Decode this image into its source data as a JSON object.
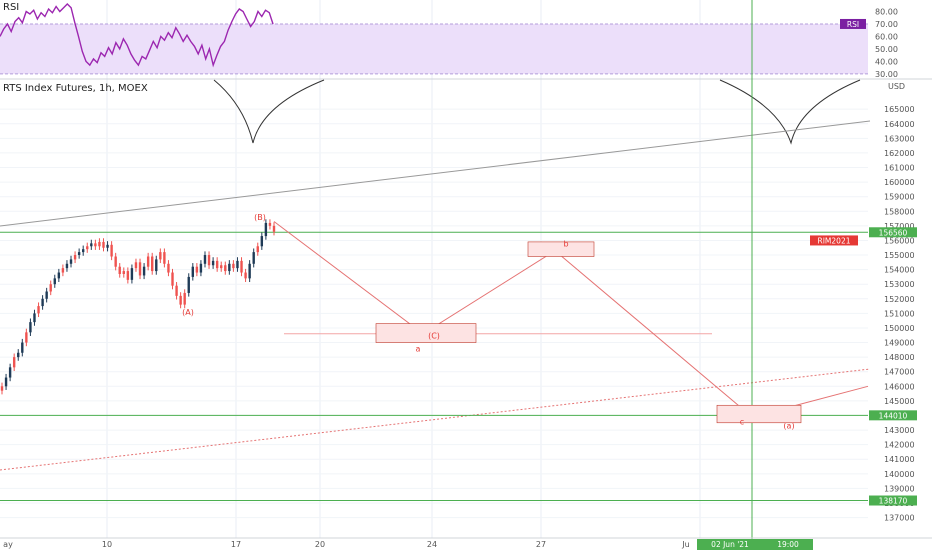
{
  "chart_data": [
    {
      "type": "line",
      "title": "RSI",
      "label": "RSI",
      "ylim": [
        27.5,
        86
      ],
      "yticks": [
        30.0,
        40.0,
        50.0,
        60.0,
        70.0,
        80.0
      ],
      "ytick_labels": [
        "30.00",
        "40.00",
        "50.00",
        "60.00",
        "70.00",
        "80.00"
      ],
      "zone": [
        30,
        70
      ],
      "series": [
        {
          "values": [
            60,
            66,
            70,
            64,
            72,
            75,
            71,
            80,
            78,
            81,
            74,
            79,
            76,
            82,
            79,
            84,
            80,
            83,
            86,
            83,
            71,
            60,
            48,
            40,
            37,
            42,
            39,
            47,
            44,
            51,
            46,
            55,
            50,
            58,
            53,
            46,
            41,
            37,
            44,
            42,
            49,
            56,
            51,
            60,
            57,
            63,
            59,
            67,
            62,
            56,
            61,
            56,
            52,
            46,
            53,
            42,
            50,
            37,
            45,
            52,
            56,
            65,
            72,
            78,
            82,
            80,
            74,
            68,
            72,
            80,
            76,
            81,
            79,
            70
          ]
        }
      ],
      "colors": {
        "line": "#9c27b0",
        "zone": "#ecdffa",
        "label_bg": "#7b1fa2"
      }
    },
    {
      "type": "line",
      "title": "RTS Index Futures, 1h, MOEX",
      "currency": "USD",
      "ylim": [
        135600,
        167000
      ],
      "yticks": [
        137000,
        138000,
        139000,
        140000,
        141000,
        142000,
        143000,
        144000,
        145000,
        146000,
        147000,
        148000,
        149000,
        150000,
        151000,
        152000,
        153000,
        154000,
        155000,
        156000,
        157000,
        158000,
        159000,
        160000,
        161000,
        162000,
        163000,
        164000,
        165000
      ],
      "ytick_labels": [
        "137000",
        "138000",
        "139000",
        "140000",
        "141000",
        "142000",
        "143000",
        "144000",
        "145000",
        "146000",
        "147000",
        "148000",
        "149000",
        "150000",
        "151000",
        "152000",
        "153000",
        "154000",
        "155000",
        "156000",
        "157000",
        "158000",
        "159000",
        "160000",
        "161000",
        "162000",
        "163000",
        "164000",
        "165000"
      ],
      "x_tick_labels": [
        "ay",
        "10",
        "17",
        "20",
        "24",
        "27",
        "Ju",
        "02 Jun '21",
        "19:00"
      ],
      "price_series": [
        146000,
        146600,
        147300,
        148000,
        148300,
        149000,
        149700,
        150400,
        151000,
        151500,
        152000,
        152500,
        153000,
        153400,
        153800,
        154100,
        154400,
        154700,
        155000,
        155200,
        155400,
        155600,
        155800,
        155600,
        155900,
        155500,
        155700,
        154900,
        154200,
        153700,
        153900,
        153300,
        154100,
        154500,
        153600,
        154200,
        154900,
        153900,
        154700,
        155200,
        154400,
        153800,
        152900,
        152200,
        151600,
        152400,
        153500,
        154200,
        153800,
        154400,
        155000,
        154300,
        154600,
        154100,
        154300,
        153900,
        154400,
        154100,
        154600,
        153800,
        153400,
        154400,
        155200,
        155600,
        156300,
        157200,
        157000,
        156600
      ],
      "levels": [
        {
          "label": "156560",
          "value": 156560,
          "color": "#4caf50"
        },
        {
          "label": "144010",
          "value": 144010,
          "color": "#4caf50"
        },
        {
          "label": "138170",
          "value": 138170,
          "color": "#4caf50"
        }
      ],
      "symbol_tag": {
        "label": "RIM2021",
        "value": 156000,
        "color": "#e53935"
      },
      "wave_labels": [
        {
          "label": "(B)",
          "value": 157600
        },
        {
          "label": "(A)",
          "value": 151100
        },
        {
          "label": "(C)",
          "value": 149500
        },
        {
          "label": "a",
          "value": 148600
        },
        {
          "label": "b",
          "value": 155800
        },
        {
          "label": "c",
          "value": 143600
        },
        {
          "label": "(a)",
          "value": 143300
        }
      ],
      "wave_path": [
        157300,
        149600,
        155300,
        143900
      ],
      "colors": {
        "up": "#26a69a",
        "down": "#ef5350",
        "wave": "#e57373",
        "box_fill": "#fde3e3",
        "box_stroke": "#c0392b",
        "vline": "#4caf50",
        "trend": "#999999"
      }
    }
  ]
}
